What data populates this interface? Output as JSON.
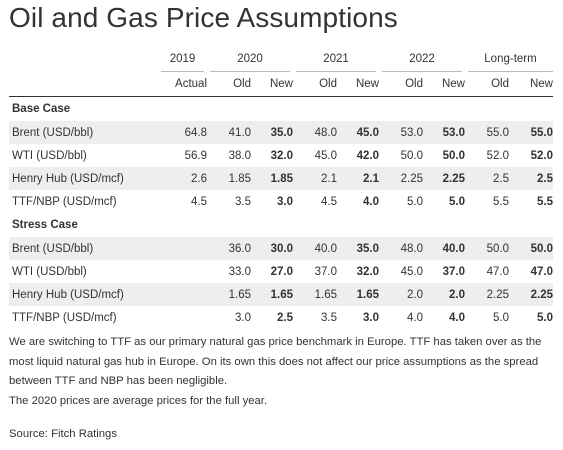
{
  "title": "Oil and Gas Price Assumptions",
  "years": [
    "2019",
    "2020",
    "2021",
    "2022",
    "Long-term"
  ],
  "subheaders": [
    "Actual",
    "Old",
    "New",
    "Old",
    "New",
    "Old",
    "New",
    "Old",
    "New"
  ],
  "sections": [
    {
      "name": "Base Case",
      "rows": [
        {
          "label": "Brent (USD/bbl)",
          "values": [
            "64.8",
            "41.0",
            "35.0",
            "48.0",
            "45.0",
            "53.0",
            "53.0",
            "55.0",
            "55.0"
          ]
        },
        {
          "label": "WTI (USD/bbl)",
          "values": [
            "56.9",
            "38.0",
            "32.0",
            "45.0",
            "42.0",
            "50.0",
            "50.0",
            "52.0",
            "52.0"
          ]
        },
        {
          "label": "Henry Hub (USD/mcf)",
          "values": [
            "2.6",
            "1.85",
            "1.85",
            "2.1",
            "2.1",
            "2.25",
            "2.25",
            "2.5",
            "2.5"
          ]
        },
        {
          "label": "TTF/NBP (USD/mcf)",
          "values": [
            "4.5",
            "3.5",
            "3.0",
            "4.5",
            "4.0",
            "5.0",
            "5.0",
            "5.5",
            "5.5"
          ]
        }
      ]
    },
    {
      "name": "Stress Case",
      "rows": [
        {
          "label": "Brent (USD/bbl)",
          "values": [
            "",
            "36.0",
            "30.0",
            "40.0",
            "35.0",
            "48.0",
            "40.0",
            "50.0",
            "50.0"
          ]
        },
        {
          "label": "WTI (USD/bbl)",
          "values": [
            "",
            "33.0",
            "27.0",
            "37.0",
            "32.0",
            "45.0",
            "37.0",
            "47.0",
            "47.0"
          ]
        },
        {
          "label": "Henry Hub (USD/mcf)",
          "values": [
            "",
            "1.65",
            "1.65",
            "1.65",
            "1.65",
            "2.0",
            "2.0",
            "2.25",
            "2.25"
          ]
        },
        {
          "label": "TTF/NBP (USD/mcf)",
          "values": [
            "",
            "3.0",
            "2.5",
            "3.5",
            "3.0",
            "4.0",
            "4.0",
            "5.0",
            "5.0"
          ]
        }
      ]
    }
  ],
  "footer": {
    "paragraph1": "We are switching to TTF as our primary natural gas price benchmark in Europe. TTF has taken over as the most liquid natural gas hub in Europe. On its own this does not affect our price assumptions as the spread between TTF and NBP has been negligible.",
    "paragraph2": "The 2020 prices are average prices for the full year.",
    "source": "Source: Fitch Ratings"
  }
}
